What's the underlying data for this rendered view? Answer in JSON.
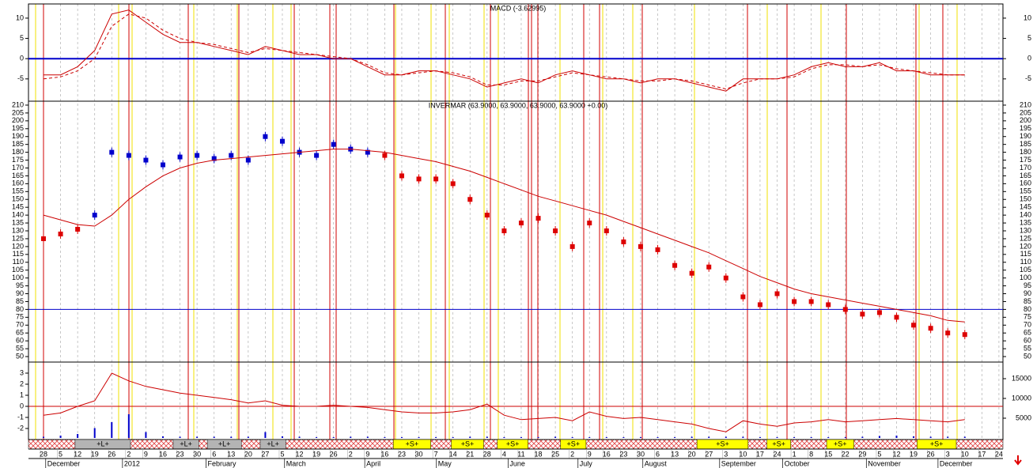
{
  "chart_data": {
    "type": "stock",
    "categories": [
      "28",
      "5",
      "12",
      "19",
      "26",
      "2",
      "9",
      "16",
      "23",
      "30",
      "6",
      "13",
      "20",
      "27",
      "5",
      "12",
      "19",
      "26",
      "2",
      "9",
      "16",
      "23",
      "30",
      "7",
      "14",
      "21",
      "28",
      "4",
      "11",
      "18",
      "25",
      "2",
      "9",
      "16",
      "23",
      "30",
      "6",
      "13",
      "20",
      "27",
      "3",
      "10",
      "17",
      "24",
      "1",
      "8",
      "15",
      "22",
      "29",
      "5",
      "12",
      "19",
      "26",
      "3",
      "10",
      "17",
      "24"
    ],
    "months": [
      {
        "label": "December",
        "index": 0.5
      },
      {
        "label": "2012",
        "index": 5
      },
      {
        "label": "February",
        "index": 9.9
      },
      {
        "label": "March",
        "index": 14.5
      },
      {
        "label": "April",
        "index": 19.2
      },
      {
        "label": "May",
        "index": 23.4
      },
      {
        "label": "June",
        "index": 27.6
      },
      {
        "label": "July",
        "index": 31.7
      },
      {
        "label": "August",
        "index": 35.5
      },
      {
        "label": "September",
        "index": 40
      },
      {
        "label": "October",
        "index": 43.7
      },
      {
        "label": "November",
        "index": 48.6
      },
      {
        "label": "December",
        "index": 52.8
      }
    ],
    "panels": [
      {
        "type": "line",
        "title": "MACD (-3.62995)",
        "ylim": [
          -10.5,
          13.5
        ],
        "yticks": [
          -5,
          0,
          5,
          10
        ],
        "reference_line": 0,
        "reference_color": "#0000cc",
        "series": [
          {
            "color": "#cc0000",
            "values": [
              -4,
              -4,
              -2,
              2,
              11,
              12,
              9,
              6,
              4,
              4,
              3,
              2,
              1,
              3,
              2,
              1,
              1,
              0,
              0,
              -2,
              -4,
              -4,
              -3,
              -3,
              -4,
              -5,
              -7,
              -6,
              -5,
              -6,
              -4,
              -3,
              -4,
              -5,
              -5,
              -6,
              -5,
              -5,
              -6,
              -7,
              -8,
              -5,
              -5,
              -5,
              -4,
              -2,
              -1,
              -2,
              -2,
              -1,
              -3,
              -3,
              -4,
              -4,
              -4,
              null,
              null
            ]
          },
          {
            "color": "#cc0000",
            "dash": true,
            "values": [
              -5,
              -4.5,
              -3,
              0,
              8,
              11,
              10,
              7,
              5,
              4,
              3.5,
              2.5,
              1.5,
              2.5,
              2,
              1.5,
              1,
              0.5,
              0,
              -1.5,
              -3.5,
              -4,
              -3.5,
              -3,
              -3.5,
              -4.5,
              -6.5,
              -6.5,
              -5.5,
              -5.5,
              -4.5,
              -3.5,
              -4,
              -4.5,
              -5,
              -5.5,
              -5.5,
              -5,
              -5.5,
              -6.5,
              -7.5,
              -6,
              -5,
              -5,
              -4.5,
              -2.5,
              -1.5,
              -1.5,
              -2,
              -1.5,
              -2.5,
              -3,
              -3.5,
              -4,
              -4,
              null,
              null
            ]
          }
        ]
      },
      {
        "type": "candle",
        "title": "INVERMAR (63.9000, 63.9000, 63.9000, 63.9000 +0.00)",
        "ylim": [
          46.5,
          212.5
        ],
        "yticks": [
          50,
          55,
          60,
          65,
          70,
          75,
          80,
          85,
          90,
          95,
          100,
          105,
          110,
          115,
          120,
          125,
          130,
          135,
          140,
          145,
          150,
          155,
          160,
          165,
          170,
          175,
          180,
          185,
          190,
          195,
          200,
          205,
          210
        ],
        "reference_line": 80,
        "reference_color": "#0000cc",
        "series": [
          {
            "color": "#0000cc",
            "style": "candle",
            "values": [
              null,
              null,
              null,
              140,
              180,
              178,
              175,
              172,
              177,
              178,
              176,
              178,
              175,
              190,
              187,
              180,
              178,
              185,
              182,
              180,
              null,
              null,
              null,
              null,
              null,
              null,
              null,
              null,
              null,
              null,
              null,
              null,
              null,
              null,
              null,
              null,
              null,
              null,
              null,
              null,
              null,
              null,
              null,
              null,
              null,
              null,
              null,
              null,
              null,
              null,
              null,
              null,
              null,
              null,
              null,
              null,
              null
            ]
          },
          {
            "color": "#dd0000",
            "style": "candle",
            "values": [
              125,
              128,
              131,
              null,
              null,
              null,
              null,
              null,
              null,
              null,
              null,
              null,
              null,
              null,
              null,
              null,
              null,
              null,
              null,
              null,
              178,
              165,
              163,
              163,
              160,
              150,
              140,
              130,
              135,
              138,
              130,
              120,
              135,
              130,
              123,
              120,
              118,
              108,
              103,
              107,
              100,
              88,
              83,
              90,
              85,
              85,
              83,
              80,
              77,
              78,
              75,
              70,
              68,
              65,
              64,
              null,
              null
            ]
          },
          {
            "color": "#cc0000",
            "style": "line",
            "values": [
              140,
              137,
              134,
              133,
              140,
              150,
              158,
              165,
              170,
              173,
              175,
              176,
              177,
              178,
              179,
              180,
              181,
              182,
              182,
              181,
              180,
              178,
              176,
              174,
              171,
              168,
              164,
              160,
              156,
              152,
              149,
              146,
              143,
              140,
              136,
              132,
              128,
              124,
              120,
              116,
              111,
              106,
              101,
              97,
              93,
              90,
              88,
              86,
              84,
              82,
              80,
              78,
              76,
              73,
              72,
              null,
              null
            ]
          }
        ]
      },
      {
        "type": "line",
        "ylim": [
          -3,
          4
        ],
        "yticks": [
          -2,
          -1,
          0,
          1,
          2,
          3
        ],
        "y2lim": [
          -400,
          19200
        ],
        "y2ticks": [
          5000,
          10000,
          15000
        ],
        "reference_line": 0,
        "reference_color": "#cc0000",
        "series": [
          {
            "color": "#0000cc",
            "axis": "y2",
            "style": "bar",
            "values": [
              300,
              600,
              1000,
              2500,
              4000,
              6000,
              1500,
              400,
              300,
              300,
              300,
              300,
              300,
              1500,
              400,
              300,
              200,
              200,
              300,
              300,
              200,
              200,
              200,
              200,
              200,
              300,
              300,
              200,
              200,
              200,
              300,
              200,
              200,
              200,
              200,
              200,
              200,
              200,
              300,
              300,
              300,
              300,
              200,
              200,
              200,
              200,
              200,
              200,
              300,
              500,
              600,
              400,
              300,
              300,
              300,
              null,
              null
            ]
          },
          {
            "color": "#cc0000",
            "values": [
              -0.8,
              -0.6,
              0,
              0.5,
              3,
              2.3,
              1.8,
              1.5,
              1.2,
              1,
              0.8,
              0.6,
              0.3,
              0.5,
              0.1,
              0,
              0,
              0.1,
              0,
              -0.1,
              -0.3,
              -0.5,
              -0.6,
              -0.6,
              -0.5,
              -0.3,
              0.2,
              -0.8,
              -1.2,
              -1.1,
              -1,
              -1.3,
              -0.5,
              -0.9,
              -1.1,
              -1,
              -1.2,
              -1.4,
              -1.6,
              -2,
              -2.3,
              -1.3,
              -1.6,
              -1.8,
              -1.5,
              -1.4,
              -1.2,
              -1.4,
              -1.3,
              -1.2,
              -1.1,
              -1.2,
              -1.3,
              -1.4,
              -1.2,
              null,
              null
            ]
          }
        ]
      }
    ],
    "bands": [
      {
        "label": "+L+",
        "start": 1.85,
        "end": 5.1,
        "color": "#b4b4b4"
      },
      {
        "label": "+L+",
        "start": 7.6,
        "end": 9.1,
        "color": "#b4b4b4"
      },
      {
        "label": "+L+",
        "start": 9.6,
        "end": 11.6,
        "color": "#b4b4b4"
      },
      {
        "label": "+L+",
        "start": 12.7,
        "end": 14.2,
        "color": "#b4b4b4"
      },
      {
        "label": "+S+",
        "start": 20.5,
        "end": 22.7,
        "color": "#ffff00"
      },
      {
        "label": "+S+",
        "start": 23.9,
        "end": 25.8,
        "color": "#ffff00"
      },
      {
        "label": "+S+",
        "start": 26.6,
        "end": 28.4,
        "color": "#ffff00"
      },
      {
        "label": "+S+",
        "start": 30.3,
        "end": 31.8,
        "color": "#ffff00"
      },
      {
        "label": "+S+",
        "start": 38.3,
        "end": 41.3,
        "color": "#ffff00"
      },
      {
        "label": "+S+",
        "start": 42.4,
        "end": 43.8,
        "color": "#ffff00"
      },
      {
        "label": "+S+",
        "start": 45.9,
        "end": 47.5,
        "color": "#ffff00"
      },
      {
        "label": "+S+",
        "start": 51.2,
        "end": 53.5,
        "color": "#ffff00"
      }
    ]
  }
}
